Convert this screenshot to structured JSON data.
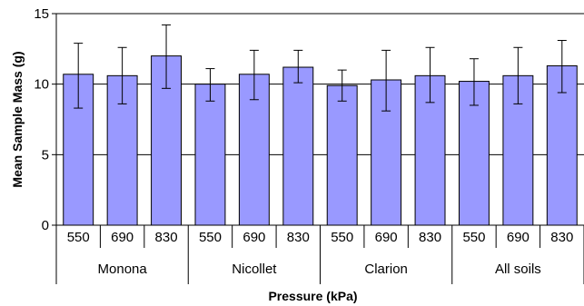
{
  "chart_data": {
    "type": "bar",
    "xlabel": "Pressure (kPa)",
    "ylabel": "Mean Sample Mass (g)",
    "ylim": [
      0,
      15
    ],
    "yticks": [
      0,
      5,
      10,
      15
    ],
    "grid": "horizontal",
    "bar_color": "#9999FF",
    "groups": [
      {
        "label": "Monona",
        "categories": [
          "550",
          "690",
          "830"
        ]
      },
      {
        "label": "Nicollet",
        "categories": [
          "550",
          "690",
          "830"
        ]
      },
      {
        "label": "Clarion",
        "categories": [
          "550",
          "690",
          "830"
        ]
      },
      {
        "label": "All soils",
        "categories": [
          "550",
          "690",
          "830"
        ]
      }
    ],
    "series": [
      {
        "values": [
          10.7,
          10.6,
          12.0,
          10.0,
          10.7,
          11.2,
          9.9,
          10.3,
          10.6,
          10.2,
          10.6,
          11.3
        ],
        "error_low": [
          8.3,
          8.6,
          9.7,
          8.8,
          8.9,
          10.1,
          8.8,
          8.1,
          8.7,
          8.5,
          8.6,
          9.4
        ],
        "error_high": [
          12.9,
          12.6,
          14.2,
          11.1,
          12.4,
          12.4,
          11.0,
          12.4,
          12.6,
          11.8,
          12.6,
          13.1
        ]
      }
    ]
  }
}
